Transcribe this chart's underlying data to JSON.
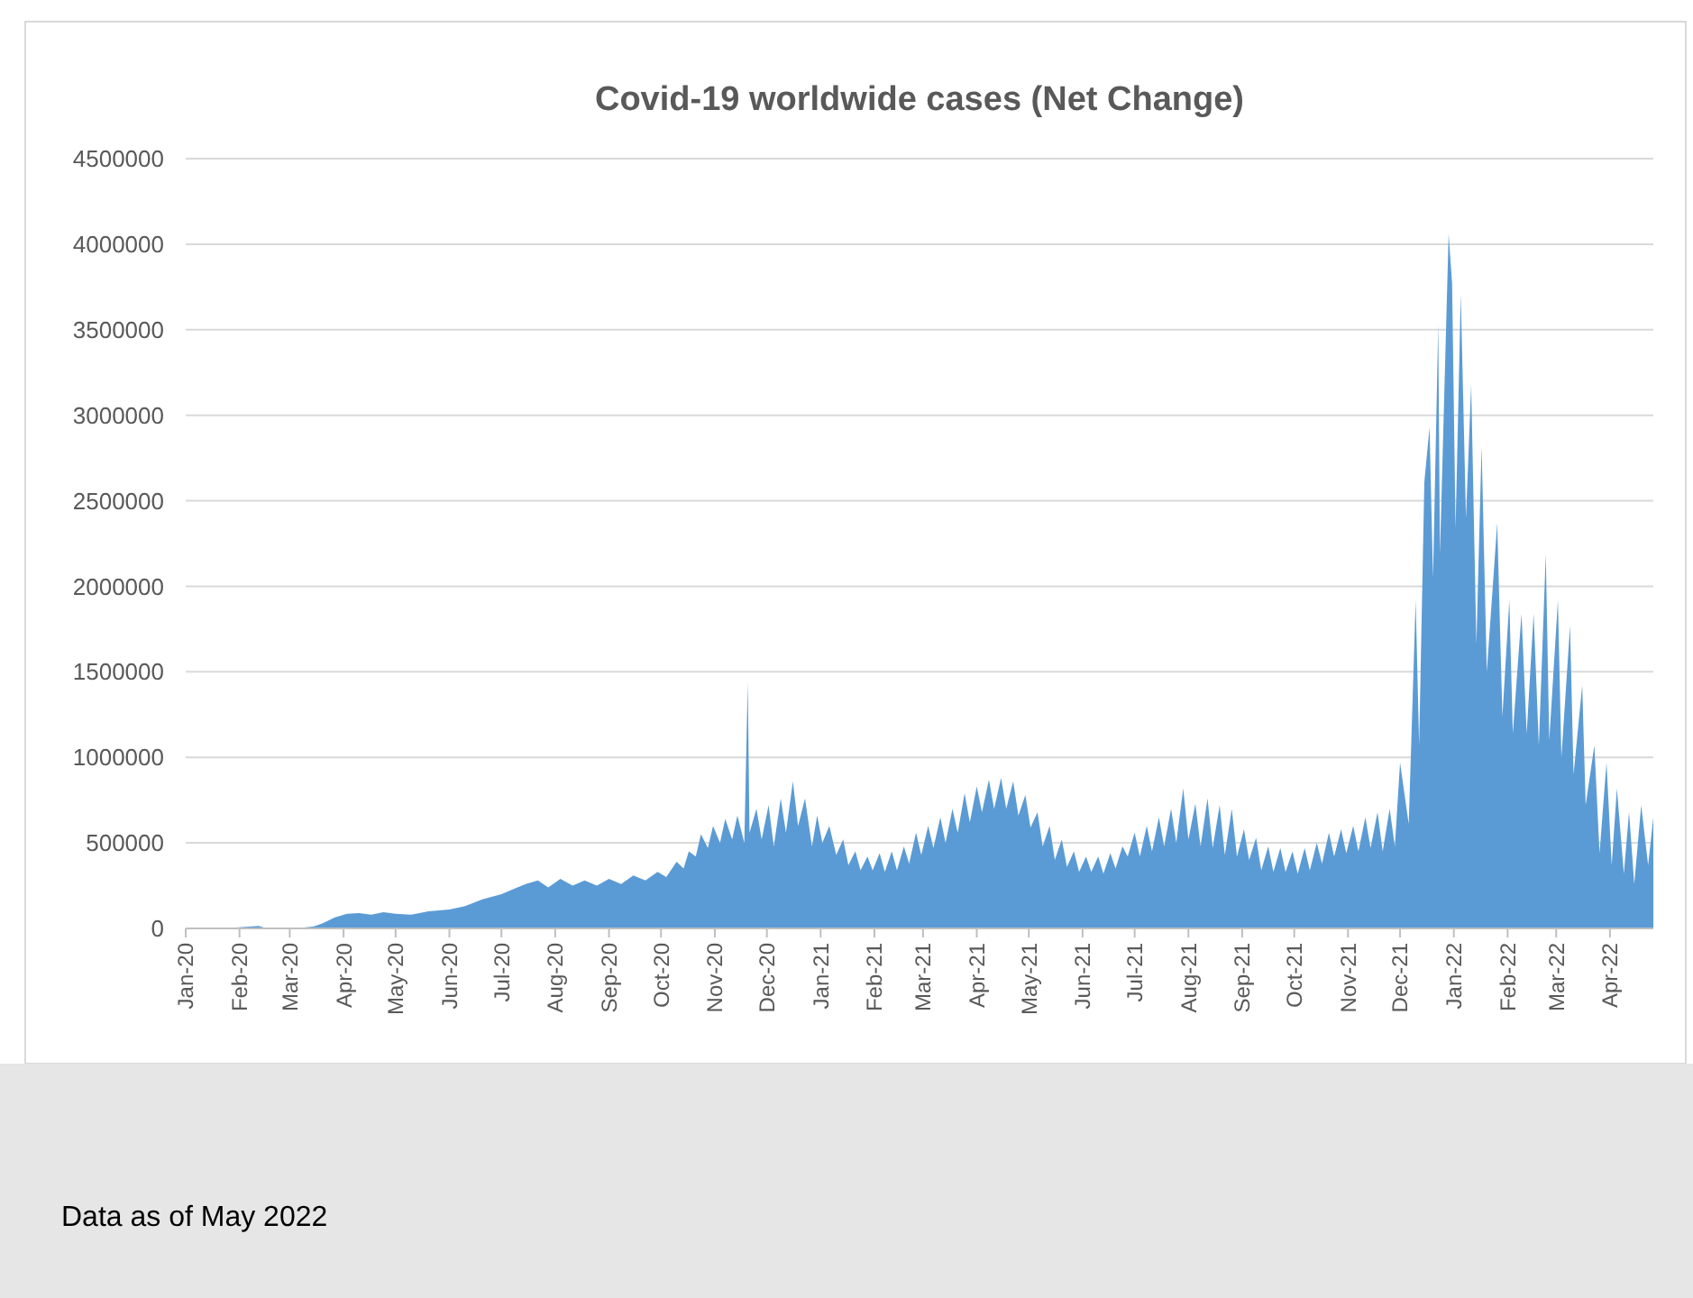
{
  "chart_data": {
    "type": "area",
    "title": "Covid-19 worldwide cases (Net Change)",
    "color": "#5b9bd5",
    "grid": "y",
    "annotations": [
      "Data as of May 2022"
    ],
    "xlim": [
      "2020-01-01",
      "2022-04-26"
    ],
    "xticks": [
      {
        "value": "2020-01-01",
        "label": "Jan-20"
      },
      {
        "value": "2020-02-01",
        "label": "Feb-20"
      },
      {
        "value": "2020-03-01",
        "label": "Mar-20"
      },
      {
        "value": "2020-04-01",
        "label": "Apr-20"
      },
      {
        "value": "2020-05-01",
        "label": "May-20"
      },
      {
        "value": "2020-06-01",
        "label": "Jun-20"
      },
      {
        "value": "2020-07-01",
        "label": "Jul-20"
      },
      {
        "value": "2020-08-01",
        "label": "Aug-20"
      },
      {
        "value": "2020-09-01",
        "label": "Sep-20"
      },
      {
        "value": "2020-10-01",
        "label": "Oct-20"
      },
      {
        "value": "2020-11-01",
        "label": "Nov-20"
      },
      {
        "value": "2020-12-01",
        "label": "Dec-20"
      },
      {
        "value": "2021-01-01",
        "label": "Jan-21"
      },
      {
        "value": "2021-02-01",
        "label": "Feb-21"
      },
      {
        "value": "2021-03-01",
        "label": "Mar-21"
      },
      {
        "value": "2021-04-01",
        "label": "Apr-21"
      },
      {
        "value": "2021-05-01",
        "label": "May-21"
      },
      {
        "value": "2021-06-01",
        "label": "Jun-21"
      },
      {
        "value": "2021-07-01",
        "label": "Jul-21"
      },
      {
        "value": "2021-08-01",
        "label": "Aug-21"
      },
      {
        "value": "2021-09-01",
        "label": "Sep-21"
      },
      {
        "value": "2021-10-01",
        "label": "Oct-21"
      },
      {
        "value": "2021-11-01",
        "label": "Nov-21"
      },
      {
        "value": "2021-12-01",
        "label": "Dec-21"
      },
      {
        "value": "2022-01-01",
        "label": "Jan-22"
      },
      {
        "value": "2022-02-01",
        "label": "Feb-22"
      },
      {
        "value": "2022-03-01",
        "label": "Mar-22"
      },
      {
        "value": "2022-04-01",
        "label": "Apr-22"
      }
    ],
    "ylim": [
      0,
      4500000
    ],
    "yticks": [
      0,
      500000,
      1000000,
      1500000,
      2000000,
      2500000,
      3000000,
      3500000,
      4000000,
      4500000
    ],
    "x": [
      "2020-01-22",
      "2020-02-12",
      "2020-02-16",
      "2020-03-01",
      "2020-03-08",
      "2020-03-15",
      "2020-03-20",
      "2020-03-27",
      "2020-04-03",
      "2020-04-10",
      "2020-04-17",
      "2020-04-24",
      "2020-05-01",
      "2020-05-10",
      "2020-05-20",
      "2020-06-01",
      "2020-06-10",
      "2020-06-20",
      "2020-07-01",
      "2020-07-08",
      "2020-07-15",
      "2020-07-22",
      "2020-07-28",
      "2020-08-04",
      "2020-08-11",
      "2020-08-18",
      "2020-08-25",
      "2020-09-01",
      "2020-09-08",
      "2020-09-15",
      "2020-09-22",
      "2020-09-29",
      "2020-10-04",
      "2020-10-10",
      "2020-10-14",
      "2020-10-17",
      "2020-10-21",
      "2020-10-24",
      "2020-10-28",
      "2020-10-31",
      "2020-11-04",
      "2020-11-07",
      "2020-11-11",
      "2020-11-14",
      "2020-11-18",
      "2020-11-20",
      "2020-11-21",
      "2020-11-25",
      "2020-11-28",
      "2020-12-02",
      "2020-12-05",
      "2020-12-09",
      "2020-12-12",
      "2020-12-16",
      "2020-12-19",
      "2020-12-23",
      "2020-12-27",
      "2020-12-30",
      "2021-01-02",
      "2021-01-06",
      "2021-01-10",
      "2021-01-14",
      "2021-01-17",
      "2021-01-21",
      "2021-01-24",
      "2021-01-28",
      "2021-01-31",
      "2021-02-04",
      "2021-02-07",
      "2021-02-11",
      "2021-02-14",
      "2021-02-18",
      "2021-02-21",
      "2021-02-25",
      "2021-02-28",
      "2021-03-04",
      "2021-03-07",
      "2021-03-11",
      "2021-03-14",
      "2021-03-18",
      "2021-03-21",
      "2021-03-25",
      "2021-03-28",
      "2021-04-01",
      "2021-04-04",
      "2021-04-08",
      "2021-04-11",
      "2021-04-15",
      "2021-04-18",
      "2021-04-22",
      "2021-04-25",
      "2021-04-29",
      "2021-05-02",
      "2021-05-06",
      "2021-05-09",
      "2021-05-13",
      "2021-05-16",
      "2021-05-20",
      "2021-05-23",
      "2021-05-27",
      "2021-05-30",
      "2021-06-03",
      "2021-06-06",
      "2021-06-10",
      "2021-06-13",
      "2021-06-17",
      "2021-06-20",
      "2021-06-24",
      "2021-06-27",
      "2021-07-01",
      "2021-07-04",
      "2021-07-08",
      "2021-07-11",
      "2021-07-15",
      "2021-07-18",
      "2021-07-22",
      "2021-07-25",
      "2021-07-29",
      "2021-08-01",
      "2021-08-05",
      "2021-08-08",
      "2021-08-12",
      "2021-08-15",
      "2021-08-19",
      "2021-08-22",
      "2021-08-26",
      "2021-08-29",
      "2021-09-02",
      "2021-09-05",
      "2021-09-09",
      "2021-09-12",
      "2021-09-16",
      "2021-09-19",
      "2021-09-23",
      "2021-09-26",
      "2021-09-30",
      "2021-10-03",
      "2021-10-07",
      "2021-10-10",
      "2021-10-14",
      "2021-10-17",
      "2021-10-21",
      "2021-10-24",
      "2021-10-28",
      "2021-10-31",
      "2021-11-04",
      "2021-11-07",
      "2021-11-11",
      "2021-11-14",
      "2021-11-18",
      "2021-11-21",
      "2021-11-25",
      "2021-11-28",
      "2021-12-01",
      "2021-12-06",
      "2021-12-10",
      "2021-12-12",
      "2021-12-15",
      "2021-12-18",
      "2021-12-20",
      "2021-12-23",
      "2021-12-24",
      "2021-12-29",
      "2021-12-31",
      "2022-01-02",
      "2022-01-05",
      "2022-01-08",
      "2022-01-11",
      "2022-01-14",
      "2022-01-17",
      "2022-01-20",
      "2022-01-26",
      "2022-01-29",
      "2022-02-02",
      "2022-02-04",
      "2022-02-09",
      "2022-02-12",
      "2022-02-16",
      "2022-02-19",
      "2022-02-23",
      "2022-02-25",
      "2022-03-02",
      "2022-03-04",
      "2022-03-09",
      "2022-03-11",
      "2022-03-16",
      "2022-03-18",
      "2022-03-23",
      "2022-03-26",
      "2022-03-30",
      "2022-04-02",
      "2022-04-05",
      "2022-04-09",
      "2022-04-12",
      "2022-04-15",
      "2022-04-19",
      "2022-04-23",
      "2022-04-26"
    ],
    "values": [
      0,
      15000,
      2000,
      2000,
      4000,
      12000,
      30000,
      65000,
      85000,
      90000,
      80000,
      95000,
      85000,
      80000,
      100000,
      110000,
      130000,
      170000,
      200000,
      230000,
      260000,
      280000,
      240000,
      290000,
      250000,
      280000,
      250000,
      290000,
      260000,
      310000,
      280000,
      330000,
      300000,
      390000,
      350000,
      450000,
      420000,
      550000,
      470000,
      600000,
      500000,
      640000,
      520000,
      660000,
      500000,
      1440000,
      560000,
      700000,
      520000,
      720000,
      480000,
      760000,
      560000,
      860000,
      600000,
      760000,
      480000,
      660000,
      500000,
      600000,
      430000,
      520000,
      370000,
      450000,
      340000,
      420000,
      340000,
      440000,
      330000,
      450000,
      340000,
      480000,
      380000,
      560000,
      430000,
      600000,
      470000,
      650000,
      500000,
      700000,
      560000,
      790000,
      620000,
      830000,
      680000,
      870000,
      700000,
      880000,
      700000,
      860000,
      660000,
      780000,
      590000,
      680000,
      480000,
      600000,
      400000,
      520000,
      360000,
      450000,
      330000,
      420000,
      330000,
      420000,
      320000,
      440000,
      350000,
      480000,
      420000,
      560000,
      420000,
      600000,
      450000,
      650000,
      480000,
      700000,
      500000,
      820000,
      520000,
      730000,
      480000,
      760000,
      470000,
      720000,
      430000,
      700000,
      420000,
      580000,
      400000,
      530000,
      340000,
      480000,
      330000,
      470000,
      330000,
      450000,
      320000,
      470000,
      340000,
      500000,
      380000,
      560000,
      420000,
      580000,
      440000,
      600000,
      450000,
      650000,
      470000,
      680000,
      450000,
      700000,
      480000,
      970000,
      610000,
      1920000,
      1070000,
      2610000,
      2930000,
      2050000,
      3530000,
      2190000,
      4060000,
      3770000,
      2340000,
      3710000,
      2400000,
      3180000,
      1660000,
      2820000,
      1500000,
      2370000,
      1240000,
      1920000,
      1140000,
      1840000,
      1140000,
      1840000,
      1070000,
      2190000,
      1100000,
      1920000,
      1000000,
      1770000,
      900000,
      1420000,
      720000,
      1070000,
      440000,
      970000,
      370000,
      820000,
      320000,
      680000,
      260000,
      720000,
      370000,
      650000
    ]
  }
}
